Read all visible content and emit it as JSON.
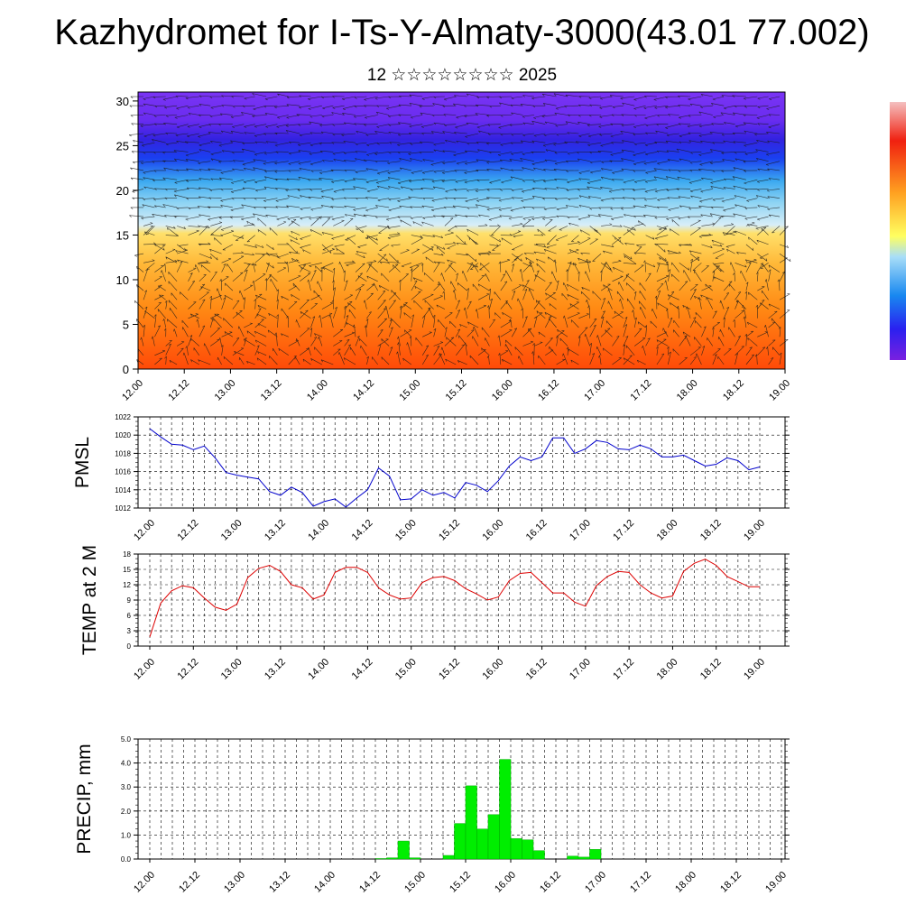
{
  "title": "Kazhydromet for I-Ts-Y-Almaty-3000(43.01 77.002)",
  "subtitle": "12 ☆☆☆☆☆☆☆☆ 2025",
  "time_labels": [
    "12.00",
    "12.12",
    "13.00",
    "13.12",
    "14.00",
    "14.12",
    "15.00",
    "15.12",
    "16.00",
    "16.12",
    "17.00",
    "17.12",
    "18.00",
    "18.12",
    "19.00"
  ],
  "chart_data": [
    {
      "type": "heatmap",
      "name": "vertical-section",
      "x": [
        "12.00",
        "12.12",
        "13.00",
        "13.12",
        "14.00",
        "14.12",
        "15.00",
        "15.12",
        "16.00",
        "16.12",
        "17.00",
        "17.12",
        "18.00",
        "18.12",
        "19.00"
      ],
      "y_ticks": [
        0,
        5,
        10,
        15,
        20,
        25,
        30
      ],
      "ylim": [
        0,
        31
      ],
      "colors": {
        "top": "#7a2ff0",
        "dark_blue": "#2a1ff0",
        "light_blue": "#b8e4f8",
        "yellow": "#ffe060",
        "orange": "#ff8a10",
        "bottom": "#ff4a08"
      },
      "overlay": "wind vectors",
      "colorbar": true
    },
    {
      "type": "line",
      "name": "pmsl",
      "ylabel": "PMSL",
      "ylim": [
        1012,
        1022
      ],
      "y_ticks": [
        1012,
        1014,
        1016,
        1018,
        1020,
        1022
      ],
      "color": "#0000cc",
      "x_step_hours": 3,
      "values": [
        1020.7,
        1019.8,
        1019.0,
        1018.9,
        1018.4,
        1018.8,
        1017.5,
        1015.9,
        1015.6,
        1015.4,
        1015.2,
        1013.8,
        1013.4,
        1014.3,
        1013.7,
        1012.2,
        1012.7,
        1013.0,
        1012.1,
        1013.1,
        1014.0,
        1016.4,
        1015.5,
        1012.9,
        1013.0,
        1014.0,
        1013.4,
        1013.7,
        1013.1,
        1014.8,
        1014.5,
        1013.8,
        1015.0,
        1016.6,
        1017.6,
        1017.2,
        1017.6,
        1019.7,
        1019.7,
        1018.0,
        1018.5,
        1019.4,
        1019.2,
        1018.5,
        1018.4,
        1018.9,
        1018.5,
        1017.6,
        1017.6,
        1017.8,
        1017.2,
        1016.6,
        1016.8,
        1017.5,
        1017.2,
        1016.2,
        1016.5
      ]
    },
    {
      "type": "line",
      "name": "temp2m",
      "ylabel": "TEMP at 2 M",
      "ylim": [
        0,
        18
      ],
      "y_ticks": [
        0,
        3,
        6,
        9,
        12,
        15,
        18
      ],
      "color": "#dd0000",
      "x_step_hours": 3,
      "values": [
        1.8,
        8.4,
        10.8,
        11.8,
        11.4,
        9.4,
        7.6,
        7.0,
        8.2,
        13.4,
        15.2,
        15.8,
        14.6,
        12.0,
        11.4,
        9.2,
        10.0,
        14.4,
        15.4,
        15.4,
        14.4,
        11.4,
        10.0,
        9.2,
        9.4,
        12.4,
        13.4,
        13.6,
        12.8,
        11.2,
        10.2,
        9.0,
        9.6,
        12.8,
        14.2,
        14.4,
        12.4,
        10.4,
        10.4,
        8.6,
        7.8,
        11.8,
        13.6,
        14.6,
        14.4,
        12.0,
        10.4,
        9.4,
        9.8,
        14.6,
        16.2,
        17.0,
        15.8,
        13.6,
        12.6,
        11.6,
        11.6
      ]
    },
    {
      "type": "bar",
      "name": "precip",
      "ylabel": "PRECIP, mm",
      "ylim": [
        0,
        5
      ],
      "y_ticks": [
        "0.0",
        "1.0",
        "2.0",
        "3.0",
        "4.0",
        "5.0"
      ],
      "color": "#00ee00",
      "x_step_hours": 3,
      "values": [
        0,
        0,
        0,
        0,
        0,
        0,
        0,
        0,
        0,
        0,
        0,
        0,
        0,
        0,
        0,
        0,
        0,
        0,
        0,
        0,
        0.02,
        0.05,
        0.75,
        0.05,
        0,
        0,
        0.15,
        1.48,
        3.05,
        1.25,
        1.85,
        4.15,
        0.85,
        0.8,
        0.35,
        0,
        0,
        0.12,
        0.08,
        0.4,
        0,
        0,
        0,
        0,
        0,
        0,
        0,
        0,
        0,
        0,
        0,
        0,
        0,
        0,
        0,
        0
      ]
    }
  ]
}
